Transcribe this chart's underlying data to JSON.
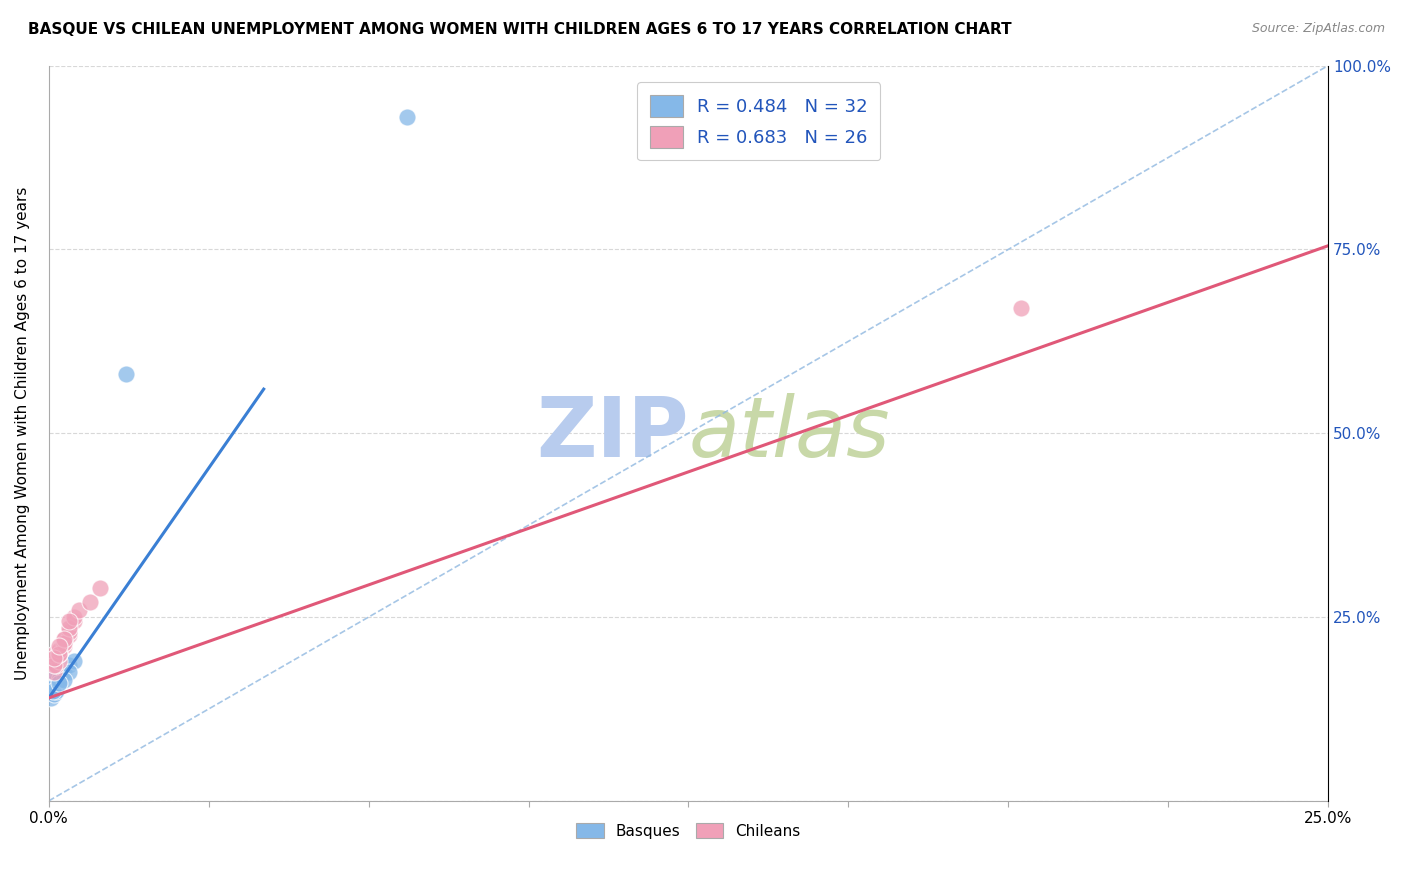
{
  "title": "BASQUE VS CHILEAN UNEMPLOYMENT AMONG WOMEN WITH CHILDREN AGES 6 TO 17 YEARS CORRELATION CHART",
  "source": "Source: ZipAtlas.com",
  "ylabel_label": "Unemployment Among Women with Children Ages 6 to 17 years",
  "basque_R": 0.484,
  "basque_N": 32,
  "chilean_R": 0.683,
  "chilean_N": 26,
  "basque_color": "#85b8e8",
  "chilean_color": "#f0a0b8",
  "basque_line_color": "#3a7fd4",
  "chilean_line_color": "#e05878",
  "ref_line_color": "#90b8e0",
  "legend_text_color": "#2255bb",
  "watermark_color": "#c8d8f0",
  "xlim": [
    0.0,
    0.25
  ],
  "ylim": [
    0.0,
    1.0
  ],
  "basque_x": [
    0.001,
    0.0015,
    0.001,
    0.001,
    0.002,
    0.001,
    0.0005,
    0.001,
    0.0008,
    0.001,
    0.0015,
    0.002,
    0.001,
    0.0005,
    0.001,
    0.0015,
    0.001,
    0.002,
    0.0025,
    0.001,
    0.001,
    0.0008,
    0.003,
    0.002,
    0.003,
    0.004,
    0.005,
    0.004,
    0.003,
    0.002,
    0.015,
    0.07
  ],
  "basque_y": [
    0.155,
    0.165,
    0.17,
    0.18,
    0.175,
    0.16,
    0.15,
    0.17,
    0.155,
    0.16,
    0.165,
    0.17,
    0.155,
    0.14,
    0.145,
    0.15,
    0.16,
    0.165,
    0.17,
    0.155,
    0.175,
    0.15,
    0.18,
    0.165,
    0.175,
    0.185,
    0.19,
    0.175,
    0.165,
    0.16,
    0.58,
    0.93
  ],
  "basque_line_x": [
    0.0,
    0.042
  ],
  "basque_line_y": [
    0.14,
    0.56
  ],
  "chilean_x": [
    0.001,
    0.0015,
    0.002,
    0.001,
    0.001,
    0.002,
    0.003,
    0.002,
    0.003,
    0.004,
    0.002,
    0.003,
    0.004,
    0.005,
    0.003,
    0.002,
    0.004,
    0.003,
    0.005,
    0.006,
    0.001,
    0.002,
    0.004,
    0.008,
    0.19,
    0.01
  ],
  "chilean_y": [
    0.175,
    0.185,
    0.19,
    0.2,
    0.185,
    0.2,
    0.21,
    0.2,
    0.215,
    0.225,
    0.205,
    0.22,
    0.23,
    0.245,
    0.215,
    0.2,
    0.235,
    0.22,
    0.25,
    0.26,
    0.195,
    0.21,
    0.245,
    0.27,
    0.67,
    0.29
  ],
  "chilean_line_x": [
    0.0,
    0.25
  ],
  "chilean_line_y": [
    0.14,
    0.755
  ]
}
